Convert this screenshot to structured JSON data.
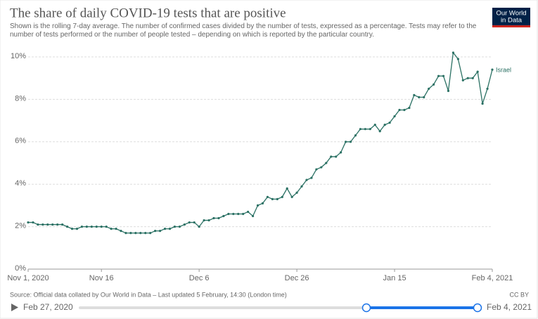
{
  "chart_data": {
    "type": "line",
    "title": "The share of daily COVID-19 tests that are positive",
    "subtitle": "Shown is the rolling 7-day average. The number of confirmed cases divided by the number of tests, expressed as a percentage. Tests may refer to the number of tests performed or the number of people tested – depending on which is reported by the particular country.",
    "source": "Source: Official data collated by Our World in Data – Last updated 5 February, 14:30 (London time)",
    "license": "CC BY",
    "logo": [
      "Our World",
      "in Data"
    ],
    "x": [
      "2020-11-01",
      "2020-11-02",
      "2020-11-03",
      "2020-11-04",
      "2020-11-05",
      "2020-11-06",
      "2020-11-07",
      "2020-11-08",
      "2020-11-09",
      "2020-11-10",
      "2020-11-11",
      "2020-11-12",
      "2020-11-13",
      "2020-11-14",
      "2020-11-15",
      "2020-11-16",
      "2020-11-17",
      "2020-11-18",
      "2020-11-19",
      "2020-11-20",
      "2020-11-21",
      "2020-11-22",
      "2020-11-23",
      "2020-11-24",
      "2020-11-25",
      "2020-11-26",
      "2020-11-27",
      "2020-11-28",
      "2020-11-29",
      "2020-11-30",
      "2020-12-01",
      "2020-12-02",
      "2020-12-03",
      "2020-12-04",
      "2020-12-05",
      "2020-12-06",
      "2020-12-07",
      "2020-12-08",
      "2020-12-09",
      "2020-12-10",
      "2020-12-11",
      "2020-12-12",
      "2020-12-13",
      "2020-12-14",
      "2020-12-15",
      "2020-12-16",
      "2020-12-17",
      "2020-12-18",
      "2020-12-19",
      "2020-12-20",
      "2020-12-21",
      "2020-12-22",
      "2020-12-23",
      "2020-12-24",
      "2020-12-25",
      "2020-12-26",
      "2020-12-27",
      "2020-12-28",
      "2020-12-29",
      "2020-12-30",
      "2020-12-31",
      "2021-01-01",
      "2021-01-02",
      "2021-01-03",
      "2021-01-04",
      "2021-01-05",
      "2021-01-06",
      "2021-01-07",
      "2021-01-08",
      "2021-01-09",
      "2021-01-10",
      "2021-01-11",
      "2021-01-12",
      "2021-01-13",
      "2021-01-14",
      "2021-01-15",
      "2021-01-16",
      "2021-01-17",
      "2021-01-18",
      "2021-01-19",
      "2021-01-20",
      "2021-01-21",
      "2021-01-22",
      "2021-01-23",
      "2021-01-24",
      "2021-01-25",
      "2021-01-26",
      "2021-01-27",
      "2021-01-28",
      "2021-01-29",
      "2021-01-30",
      "2021-01-31",
      "2021-02-01",
      "2021-02-02",
      "2021-02-03",
      "2021-02-04"
    ],
    "series": [
      {
        "name": "Israel",
        "color": "#2b7164",
        "values": [
          2.2,
          2.2,
          2.1,
          2.1,
          2.1,
          2.1,
          2.1,
          2.1,
          2.0,
          1.9,
          1.9,
          2.0,
          2.0,
          2.0,
          2.0,
          2.0,
          2.0,
          1.9,
          1.9,
          1.8,
          1.7,
          1.7,
          1.7,
          1.7,
          1.7,
          1.7,
          1.8,
          1.8,
          1.9,
          1.9,
          2.0,
          2.0,
          2.1,
          2.2,
          2.2,
          2.0,
          2.3,
          2.3,
          2.4,
          2.4,
          2.5,
          2.6,
          2.6,
          2.6,
          2.6,
          2.7,
          2.5,
          3.0,
          3.1,
          3.4,
          3.3,
          3.3,
          3.4,
          3.8,
          3.4,
          3.6,
          3.9,
          4.2,
          4.3,
          4.7,
          4.8,
          5.0,
          5.3,
          5.3,
          5.5,
          6.0,
          6.0,
          6.3,
          6.6,
          6.6,
          6.6,
          6.8,
          6.5,
          6.8,
          6.9,
          7.2,
          7.5,
          7.5,
          7.6,
          8.2,
          8.1,
          8.1,
          8.5,
          8.7,
          9.1,
          9.1,
          8.4,
          10.2,
          9.9,
          8.9,
          9.0,
          9.0,
          9.3,
          7.8,
          8.5,
          9.4
        ]
      }
    ],
    "xlim": [
      "2020-11-01",
      "2021-02-04"
    ],
    "xticks": [
      {
        "value": "2020-11-01",
        "label": "Nov 1, 2020"
      },
      {
        "value": "2020-11-16",
        "label": "Nov 16"
      },
      {
        "value": "2020-12-06",
        "label": "Dec 6"
      },
      {
        "value": "2020-12-26",
        "label": "Dec 26"
      },
      {
        "value": "2021-01-15",
        "label": "Jan 15"
      },
      {
        "value": "2021-02-04",
        "label": "Feb 4, 2021"
      }
    ],
    "ylim": [
      0,
      10
    ],
    "yticks": [
      {
        "value": 0,
        "label": "0%"
      },
      {
        "value": 2,
        "label": "2%"
      },
      {
        "value": 4,
        "label": "4%"
      },
      {
        "value": 6,
        "label": "6%"
      },
      {
        "value": 8,
        "label": "8%"
      },
      {
        "value": 10,
        "label": "10%"
      }
    ],
    "grid": true
  },
  "timeline": {
    "start": "Feb 27, 2020",
    "end": "Feb 4, 2021"
  }
}
